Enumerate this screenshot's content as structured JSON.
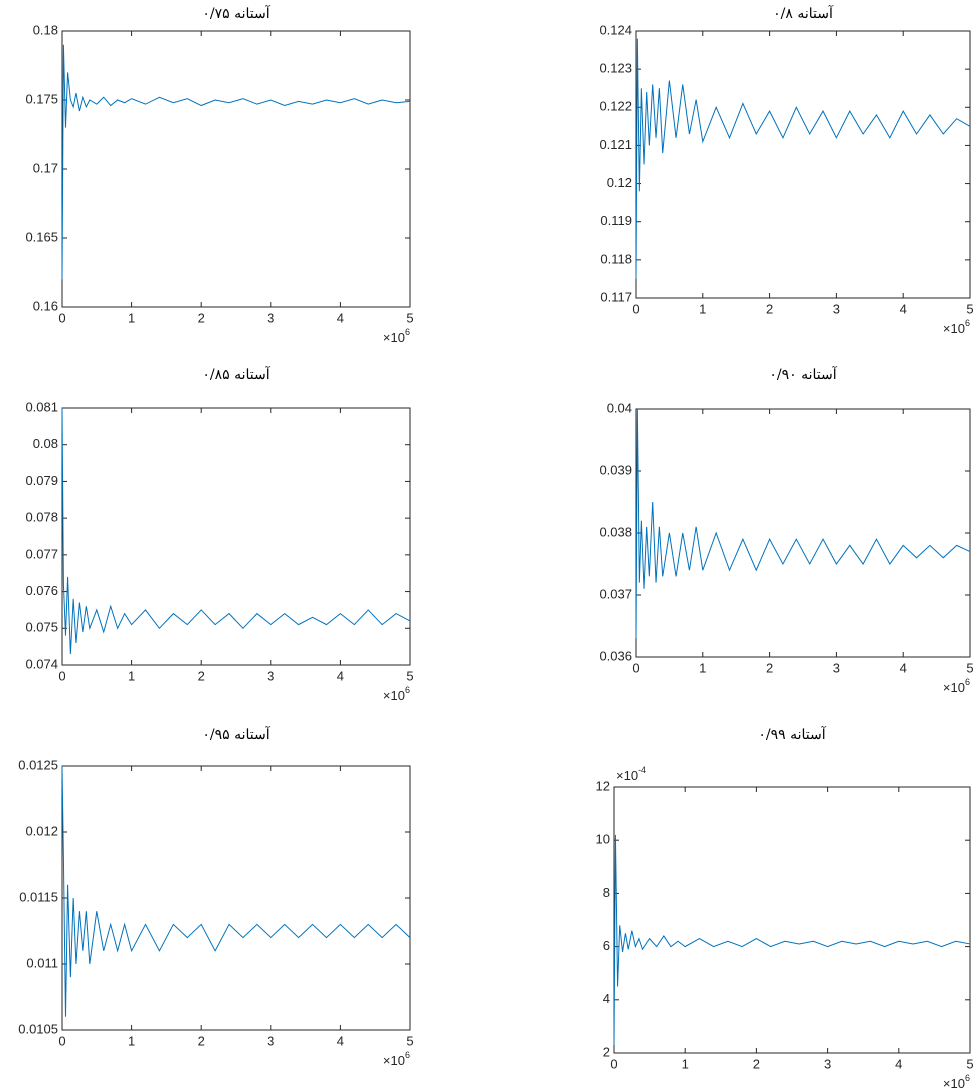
{
  "chart_data": [
    {
      "type": "line",
      "title": "آستانه ۰/۷۵",
      "x": [
        0,
        0.02,
        0.05,
        0.08,
        0.12,
        0.16,
        0.2,
        0.25,
        0.3,
        0.35,
        0.4,
        0.5,
        0.6,
        0.7,
        0.8,
        0.9,
        1.0,
        1.2,
        1.4,
        1.6,
        1.8,
        2.0,
        2.2,
        2.4,
        2.6,
        2.8,
        3.0,
        3.2,
        3.4,
        3.6,
        3.8,
        4.0,
        4.2,
        4.4,
        4.6,
        4.8,
        5.0
      ],
      "series": [
        {
          "color": "#0072bd",
          "values": [
            0.162,
            0.179,
            0.173,
            0.177,
            0.175,
            0.1745,
            0.1755,
            0.1742,
            0.1752,
            0.1745,
            0.175,
            0.1747,
            0.1752,
            0.1746,
            0.175,
            0.1748,
            0.1751,
            0.1747,
            0.1752,
            0.1748,
            0.1751,
            0.1746,
            0.175,
            0.1748,
            0.1751,
            0.1747,
            0.175,
            0.1746,
            0.1749,
            0.1747,
            0.175,
            0.1748,
            0.1751,
            0.1747,
            0.175,
            0.1748,
            0.1749
          ]
        }
      ],
      "xlim": [
        0,
        5
      ],
      "xticks": [
        0,
        1,
        2,
        3,
        4,
        5
      ],
      "ylim": [
        0.16,
        0.18
      ],
      "yticks": [
        0.16,
        0.165,
        0.17,
        0.175,
        0.18
      ],
      "x_scale": {
        "base": "×10",
        "exponent": "6"
      },
      "grid": false
    },
    {
      "type": "line",
      "title": "آستانه ۰/۸",
      "x": [
        0,
        0.02,
        0.05,
        0.08,
        0.12,
        0.16,
        0.2,
        0.25,
        0.3,
        0.35,
        0.4,
        0.5,
        0.6,
        0.7,
        0.8,
        0.9,
        1.0,
        1.2,
        1.4,
        1.6,
        1.8,
        2.0,
        2.2,
        2.4,
        2.6,
        2.8,
        3.0,
        3.2,
        3.4,
        3.6,
        3.8,
        4.0,
        4.2,
        4.4,
        4.6,
        4.8,
        5.0
      ],
      "series": [
        {
          "color": "#0072bd",
          "values": [
            0.1175,
            0.1238,
            0.1198,
            0.1225,
            0.1205,
            0.1224,
            0.121,
            0.1226,
            0.1212,
            0.1225,
            0.1208,
            0.1227,
            0.1212,
            0.1226,
            0.1213,
            0.1222,
            0.1211,
            0.122,
            0.1212,
            0.1221,
            0.1213,
            0.1219,
            0.1212,
            0.122,
            0.1213,
            0.1219,
            0.1212,
            0.1219,
            0.1213,
            0.1218,
            0.1212,
            0.1219,
            0.1213,
            0.1218,
            0.1213,
            0.1217,
            0.1215
          ]
        }
      ],
      "xlim": [
        0,
        5
      ],
      "xticks": [
        0,
        1,
        2,
        3,
        4,
        5
      ],
      "ylim": [
        0.117,
        0.124
      ],
      "yticks": [
        0.117,
        0.118,
        0.119,
        0.12,
        0.121,
        0.122,
        0.123,
        0.124
      ],
      "x_scale": {
        "base": "×10",
        "exponent": "6"
      },
      "grid": false
    },
    {
      "type": "line",
      "title": "آستانه ۰/۸۵",
      "x": [
        0,
        0.02,
        0.05,
        0.08,
        0.12,
        0.16,
        0.2,
        0.25,
        0.3,
        0.35,
        0.4,
        0.5,
        0.6,
        0.7,
        0.8,
        0.9,
        1.0,
        1.2,
        1.4,
        1.6,
        1.8,
        2.0,
        2.2,
        2.4,
        2.6,
        2.8,
        3.0,
        3.2,
        3.4,
        3.6,
        3.8,
        4.0,
        4.2,
        4.4,
        4.6,
        4.8,
        5.0
      ],
      "series": [
        {
          "color": "#0072bd",
          "values": [
            0.081,
            0.0762,
            0.0748,
            0.0764,
            0.0743,
            0.0758,
            0.0746,
            0.0757,
            0.0749,
            0.0756,
            0.075,
            0.0755,
            0.0749,
            0.0756,
            0.075,
            0.0754,
            0.0751,
            0.0755,
            0.075,
            0.0754,
            0.0751,
            0.0755,
            0.0751,
            0.0754,
            0.075,
            0.0754,
            0.0751,
            0.0754,
            0.0751,
            0.0753,
            0.0751,
            0.0754,
            0.0751,
            0.0755,
            0.0751,
            0.0754,
            0.0752
          ]
        }
      ],
      "xlim": [
        0,
        5
      ],
      "xticks": [
        0,
        1,
        2,
        3,
        4,
        5
      ],
      "ylim": [
        0.074,
        0.081
      ],
      "yticks": [
        0.074,
        0.075,
        0.076,
        0.077,
        0.078,
        0.079,
        0.08,
        0.081
      ],
      "x_scale": {
        "base": "×10",
        "exponent": "6"
      },
      "grid": false
    },
    {
      "type": "line",
      "title": "آستانه ۰/۹۰",
      "x": [
        0,
        0.02,
        0.05,
        0.08,
        0.12,
        0.16,
        0.2,
        0.25,
        0.3,
        0.35,
        0.4,
        0.5,
        0.6,
        0.7,
        0.8,
        0.9,
        1.0,
        1.2,
        1.4,
        1.6,
        1.8,
        2.0,
        2.2,
        2.4,
        2.6,
        2.8,
        3.0,
        3.2,
        3.4,
        3.6,
        3.8,
        4.0,
        4.2,
        4.4,
        4.6,
        4.8,
        5.0
      ],
      "series": [
        {
          "color": "#0072bd",
          "values": [
            0.0363,
            0.04,
            0.0372,
            0.0382,
            0.0371,
            0.0381,
            0.0373,
            0.0385,
            0.0372,
            0.0381,
            0.0373,
            0.038,
            0.0373,
            0.038,
            0.0374,
            0.0381,
            0.0374,
            0.038,
            0.0374,
            0.0379,
            0.0374,
            0.0379,
            0.0375,
            0.0379,
            0.0375,
            0.0379,
            0.0375,
            0.0378,
            0.0375,
            0.0379,
            0.0375,
            0.0378,
            0.0376,
            0.0378,
            0.0376,
            0.0378,
            0.0377
          ]
        }
      ],
      "xlim": [
        0,
        5
      ],
      "xticks": [
        0,
        1,
        2,
        3,
        4,
        5
      ],
      "ylim": [
        0.036,
        0.04
      ],
      "yticks": [
        0.036,
        0.037,
        0.038,
        0.039,
        0.04
      ],
      "x_scale": {
        "base": "×10",
        "exponent": "6"
      },
      "grid": false
    },
    {
      "type": "line",
      "title": "آستانه ۰/۹۵",
      "x": [
        0,
        0.02,
        0.05,
        0.08,
        0.12,
        0.16,
        0.2,
        0.25,
        0.3,
        0.35,
        0.4,
        0.5,
        0.6,
        0.7,
        0.8,
        0.9,
        1.0,
        1.2,
        1.4,
        1.6,
        1.8,
        2.0,
        2.2,
        2.4,
        2.6,
        2.8,
        3.0,
        3.2,
        3.4,
        3.6,
        3.8,
        4.0,
        4.2,
        4.4,
        4.6,
        4.8,
        5.0
      ],
      "series": [
        {
          "color": "#0072bd",
          "values": [
            0.0125,
            0.0118,
            0.0106,
            0.0116,
            0.0109,
            0.0115,
            0.011,
            0.0114,
            0.0111,
            0.0114,
            0.011,
            0.0114,
            0.0111,
            0.0113,
            0.0111,
            0.0113,
            0.0111,
            0.0113,
            0.0111,
            0.0113,
            0.0112,
            0.0113,
            0.0111,
            0.0113,
            0.0112,
            0.0113,
            0.0112,
            0.0113,
            0.0112,
            0.0113,
            0.0112,
            0.0113,
            0.0112,
            0.0113,
            0.0112,
            0.0113,
            0.0112
          ]
        }
      ],
      "xlim": [
        0,
        5
      ],
      "xticks": [
        0,
        1,
        2,
        3,
        4,
        5
      ],
      "ylim": [
        0.0105,
        0.0125
      ],
      "yticks": [
        0.0105,
        0.011,
        0.0115,
        0.012,
        0.0125
      ],
      "x_scale": {
        "base": "×10",
        "exponent": "6"
      },
      "grid": false
    },
    {
      "type": "line",
      "title": "آستانه ۰/۹۹",
      "x": [
        0,
        0.02,
        0.05,
        0.08,
        0.12,
        0.16,
        0.2,
        0.25,
        0.3,
        0.35,
        0.4,
        0.5,
        0.6,
        0.7,
        0.8,
        0.9,
        1.0,
        1.2,
        1.4,
        1.6,
        1.8,
        2.0,
        2.2,
        2.4,
        2.6,
        2.8,
        3.0,
        3.2,
        3.4,
        3.6,
        3.8,
        4.0,
        4.2,
        4.4,
        4.6,
        4.8,
        5.0
      ],
      "series": [
        {
          "color": "#0072bd",
          "values": [
            2.3,
            10.2,
            4.5,
            6.8,
            5.8,
            6.5,
            5.9,
            6.6,
            6.0,
            6.3,
            5.9,
            6.3,
            6.0,
            6.4,
            6.0,
            6.2,
            6.0,
            6.3,
            6.0,
            6.2,
            6.0,
            6.3,
            6.0,
            6.2,
            6.1,
            6.2,
            6.0,
            6.2,
            6.1,
            6.2,
            6.0,
            6.2,
            6.1,
            6.2,
            6.0,
            6.2,
            6.1
          ]
        }
      ],
      "xlim": [
        0,
        5
      ],
      "xticks": [
        0,
        1,
        2,
        3,
        4,
        5
      ],
      "ylim": [
        2,
        12
      ],
      "yticks": [
        2,
        4,
        6,
        8,
        10,
        12
      ],
      "x_scale": {
        "base": "×10",
        "exponent": "6"
      },
      "y_scale": {
        "base": "×10",
        "exponent": "-4"
      },
      "grid": false
    }
  ]
}
